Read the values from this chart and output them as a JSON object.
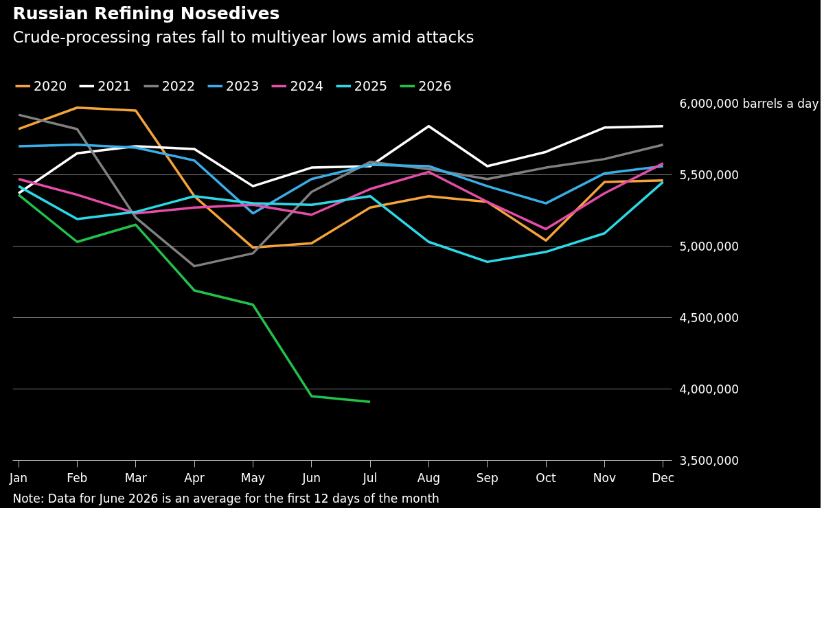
{
  "chart_data": {
    "type": "line",
    "title": "Russian Refining Nosedives",
    "subtitle": "Crude-processing rates fall to multiyear lows amid attacks",
    "categories": [
      "Jan",
      "Feb",
      "Mar",
      "Apr",
      "May",
      "Jun",
      "Jul",
      "Aug",
      "Sep",
      "Oct",
      "Nov",
      "Dec"
    ],
    "series": [
      {
        "name": "2020",
        "color": "#f5a33b",
        "values": [
          5820000,
          5970000,
          5950000,
          5350000,
          4990000,
          5020000,
          5270000,
          5350000,
          5310000,
          5040000,
          5450000,
          5460000
        ]
      },
      {
        "name": "2021",
        "color": "#ffffff",
        "values": [
          5370000,
          5650000,
          5700000,
          5680000,
          5420000,
          5550000,
          5560000,
          5840000,
          5560000,
          5660000,
          5830000,
          5840000
        ]
      },
      {
        "name": "2022",
        "color": "#808080",
        "values": [
          5920000,
          5820000,
          5200000,
          4860000,
          4950000,
          5380000,
          5590000,
          5540000,
          5470000,
          5550000,
          5610000,
          5710000
        ]
      },
      {
        "name": "2023",
        "color": "#3aaee8",
        "values": [
          5700000,
          5710000,
          5690000,
          5600000,
          5230000,
          5470000,
          5570000,
          5560000,
          5420000,
          5300000,
          5510000,
          5560000
        ]
      },
      {
        "name": "2024",
        "color": "#e64ca9",
        "values": [
          5470000,
          5360000,
          5230000,
          5270000,
          5290000,
          5220000,
          5400000,
          5520000,
          5310000,
          5120000,
          5370000,
          5580000
        ]
      },
      {
        "name": "2025",
        "color": "#2cd9e8",
        "values": [
          5420000,
          5190000,
          5240000,
          5350000,
          5300000,
          5290000,
          5350000,
          5030000,
          4890000,
          4960000,
          5090000,
          5450000
        ]
      },
      {
        "name": "2026",
        "color": "#22c24a",
        "values": [
          5360000,
          5030000,
          5150000,
          4690000,
          4590000,
          3950000,
          3910000,
          null,
          null,
          null,
          null,
          null
        ]
      }
    ],
    "ylim": [
      3500000,
      6000000
    ],
    "yticks": [
      {
        "value": 3500000,
        "label": "3,500,000"
      },
      {
        "value": 4000000,
        "label": "4,000,000"
      },
      {
        "value": 4500000,
        "label": "4,500,000"
      },
      {
        "value": 5000000,
        "label": "5,000,000"
      },
      {
        "value": 5500000,
        "label": "5,500,000"
      },
      {
        "value": 6000000,
        "label": "6,000,000 barrels a day"
      }
    ],
    "grid": "y",
    "legend": "top",
    "line_style": "solid",
    "marker": "none",
    "annotations": [
      "Note: Data for June 2026 is an average for the first 12 days of the month"
    ]
  }
}
